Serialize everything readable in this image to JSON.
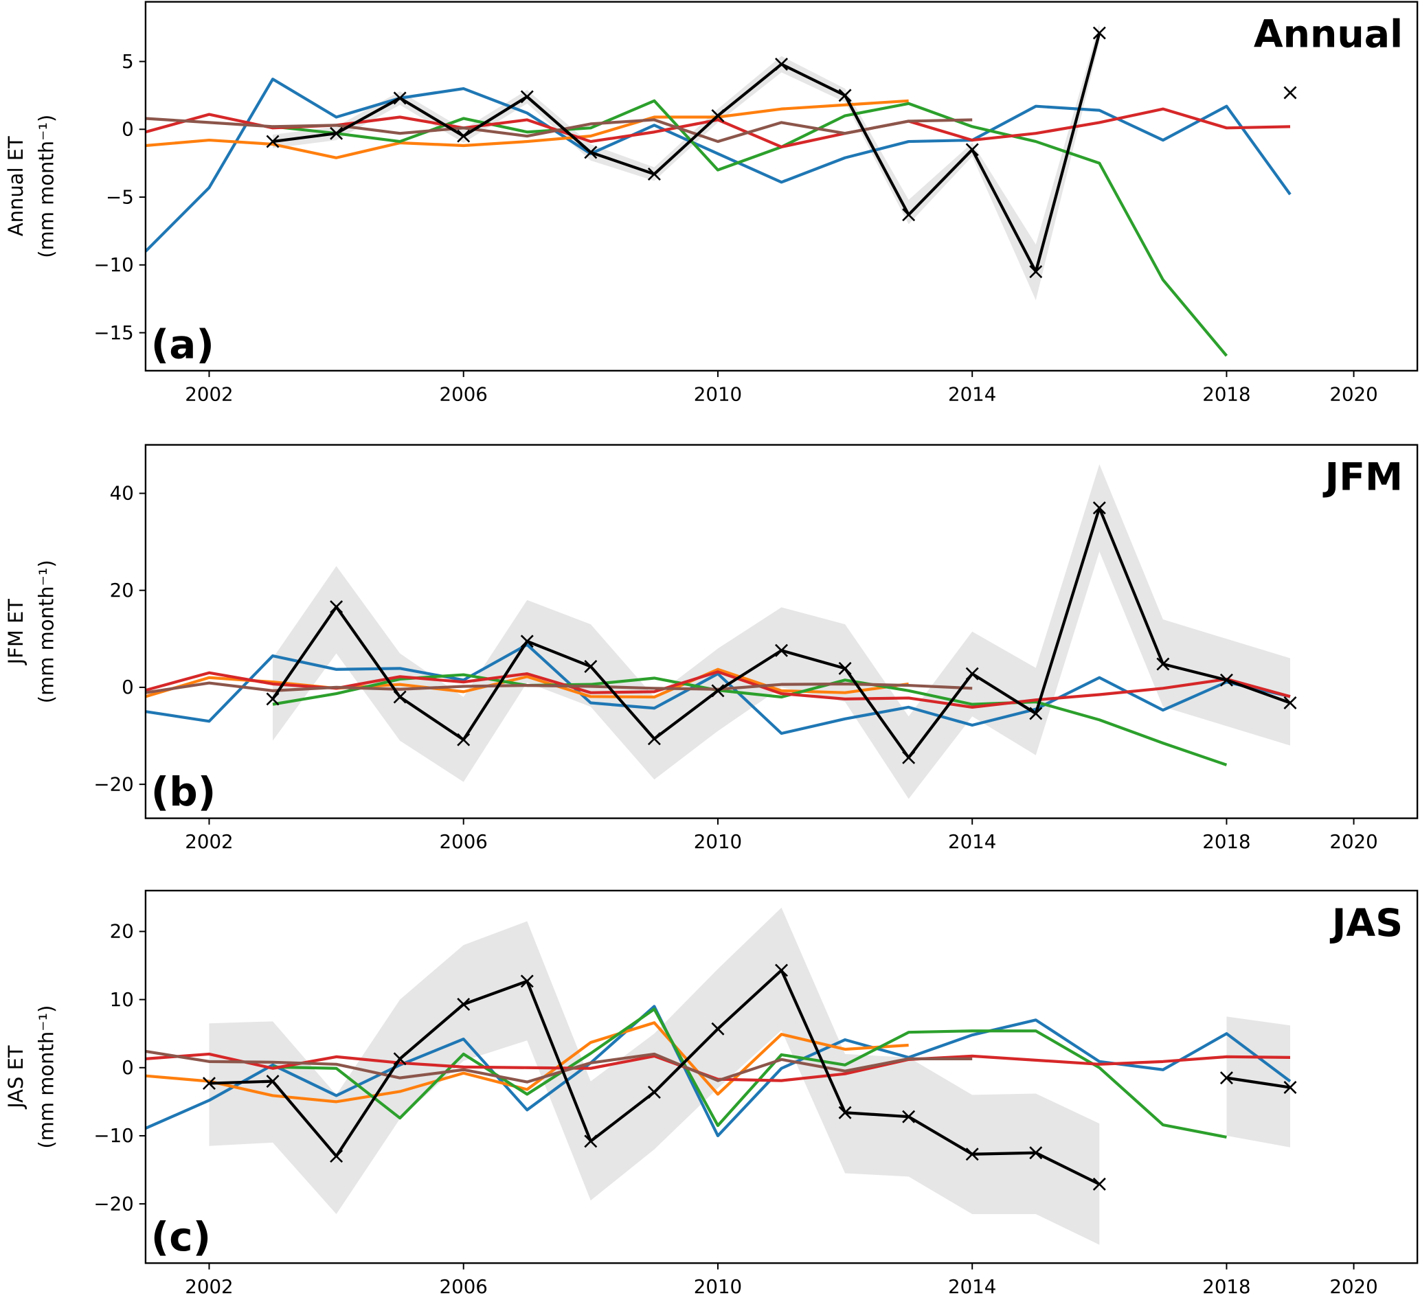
{
  "chart_data": [
    {
      "type": "line",
      "title": "Annual",
      "panel_label": "(a)",
      "ylabel_line1": "Annual ET",
      "ylabel_line2": "(mm month⁻¹)",
      "x": [
        2001,
        2002,
        2003,
        2004,
        2005,
        2006,
        2007,
        2008,
        2009,
        2010,
        2011,
        2012,
        2013,
        2014,
        2015,
        2016,
        2017,
        2018,
        2019
      ],
      "xlim": [
        2001,
        2021
      ],
      "ylim": [
        -17.8,
        9.4
      ],
      "xticks": [
        2002,
        2006,
        2010,
        2014,
        2018,
        2020
      ],
      "yticks": [
        5,
        0,
        -5,
        -10,
        -15
      ],
      "ytick_labels": [
        "5",
        "0",
        "−5",
        "−10",
        "−15"
      ],
      "grid": false,
      "band": {
        "color": "#e6e6e6",
        "lower": [
          null,
          null,
          -1.4,
          -0.8,
          1.8,
          -1.0,
          1.9,
          -2.3,
          -3.8,
          0.5,
          4.2,
          2.0,
          -7.0,
          -2.0,
          -12.6,
          6.4,
          null,
          null,
          null
        ],
        "upper": [
          null,
          null,
          -0.4,
          0.2,
          2.8,
          0.0,
          2.9,
          -1.1,
          -2.8,
          1.5,
          5.4,
          3.0,
          -5.2,
          -1.0,
          -8.5,
          7.8,
          null,
          null,
          null
        ]
      },
      "series": [
        {
          "color": "#1f77b4",
          "values": [
            -9,
            -4.3,
            3.7,
            0.9,
            2.3,
            3.0,
            1.2,
            -1.8,
            0.3,
            -1.8,
            -3.9,
            -2.1,
            -0.9,
            -0.8,
            1.7,
            1.4,
            -0.8,
            1.7,
            -4.8
          ]
        },
        {
          "color": "#ff7f0e",
          "values": [
            -1.2,
            -0.8,
            -1.1,
            -2.1,
            -1.0,
            -1.2,
            -0.9,
            -0.5,
            0.9,
            0.9,
            1.5,
            1.8,
            2.1,
            null,
            null,
            null,
            null,
            null,
            null
          ]
        },
        {
          "color": "#2ca02c",
          "values": [
            null,
            null,
            0.2,
            -0.3,
            -0.9,
            0.8,
            -0.2,
            0.1,
            2.1,
            -3.0,
            -1.3,
            1.0,
            1.9,
            0.2,
            -0.9,
            -2.5,
            -11.1,
            -16.7,
            null
          ]
        },
        {
          "color": "#d62728",
          "values": [
            -0.2,
            1.1,
            0.1,
            0.3,
            0.9,
            0.1,
            0.7,
            -0.9,
            -0.2,
            0.7,
            -1.3,
            -0.3,
            0.6,
            -0.8,
            -0.3,
            0.5,
            1.5,
            0.1,
            0.2
          ]
        },
        {
          "color": "#8c564b",
          "values": [
            0.8,
            0.5,
            0.2,
            0.3,
            -0.3,
            0.1,
            -0.5,
            0.4,
            0.7,
            -0.9,
            0.5,
            -0.3,
            0.6,
            0.7,
            null,
            null,
            null,
            null,
            null
          ]
        },
        {
          "color": "#000000",
          "marker": "x",
          "values": [
            null,
            null,
            -0.9,
            -0.3,
            2.3,
            -0.5,
            2.4,
            -1.7,
            -3.3,
            1.0,
            4.8,
            2.5,
            -6.3,
            -1.5,
            -10.5,
            7.1,
            null,
            null,
            2.7
          ]
        }
      ]
    },
    {
      "type": "line",
      "title": "JFM",
      "panel_label": "(b)",
      "ylabel_line1": "JFM ET",
      "ylabel_line2": "(mm month⁻¹)",
      "x": [
        2001,
        2002,
        2003,
        2004,
        2005,
        2006,
        2007,
        2008,
        2009,
        2010,
        2011,
        2012,
        2013,
        2014,
        2015,
        2016,
        2017,
        2018,
        2019
      ],
      "xlim": [
        2001,
        2021
      ],
      "ylim": [
        -27,
        50
      ],
      "xticks": [
        2002,
        2006,
        2010,
        2014,
        2018,
        2020
      ],
      "yticks": [
        40,
        20,
        0,
        -20
      ],
      "ytick_labels": [
        "40",
        "20",
        "0",
        "−20"
      ],
      "grid": false,
      "band": {
        "color": "#e6e6e6",
        "lower": [
          null,
          null,
          -11,
          7,
          -11,
          -19.5,
          1,
          -4,
          -19,
          -9,
          0,
          -3,
          -23,
          -6,
          -14,
          28,
          -4,
          -8,
          -12
        ],
        "upper": [
          null,
          null,
          6,
          25,
          7,
          -2,
          18,
          13,
          -2,
          8,
          16.5,
          13,
          -6,
          11.5,
          4,
          46,
          14,
          10,
          6
        ]
      },
      "series": [
        {
          "color": "#1f77b4",
          "values": [
            -5,
            -7,
            6.5,
            3.7,
            3.9,
            1.5,
            8.8,
            -3.2,
            -4.3,
            2.8,
            -9.5,
            -6.5,
            -4.1,
            -7.8,
            -4.5,
            2,
            -4.7,
            1.1,
            -1.9
          ]
        },
        {
          "color": "#ff7f0e",
          "values": [
            -1.9,
            2,
            1.1,
            -0.2,
            0.6,
            -0.9,
            2.2,
            -1.9,
            -2,
            3.7,
            -0.7,
            -1.1,
            0.7,
            null,
            null,
            null,
            null,
            null,
            null
          ]
        },
        {
          "color": "#2ca02c",
          "values": [
            null,
            null,
            -3.5,
            -1.3,
            1.7,
            2.6,
            0.4,
            0.6,
            1.9,
            -0.6,
            -2,
            1.5,
            -0.7,
            -3.5,
            -3,
            -6.7,
            -11.5,
            -16,
            null
          ]
        },
        {
          "color": "#d62728",
          "values": [
            -0.6,
            3,
            0.7,
            -0.2,
            2.2,
            1.1,
            2.8,
            -1.1,
            -0.9,
            3.2,
            -1.3,
            -2.4,
            -2.2,
            -4.1,
            -2.6,
            -1.5,
            -0.2,
            1.7,
            -1.9
          ]
        },
        {
          "color": "#8c564b",
          "values": [
            -1.1,
            0.9,
            -0.7,
            0,
            -0.4,
            0.2,
            0.4,
            0.2,
            -0.2,
            -0.4,
            0.6,
            0.7,
            0.4,
            -0.2,
            null,
            null,
            null,
            null,
            null
          ]
        },
        {
          "color": "#000000",
          "marker": "x",
          "values": [
            null,
            null,
            -2.4,
            16.6,
            -2,
            -10.8,
            9.5,
            4.3,
            -10.6,
            -0.7,
            7.6,
            3.9,
            -14.5,
            2.8,
            -5.4,
            37,
            4.8,
            1.5,
            -3.2
          ]
        }
      ]
    },
    {
      "type": "line",
      "title": "JAS",
      "panel_label": "(c)",
      "ylabel_line1": "JAS ET",
      "ylabel_line2": "(mm month⁻¹)",
      "x": [
        2001,
        2002,
        2003,
        2004,
        2005,
        2006,
        2007,
        2008,
        2009,
        2010,
        2011,
        2012,
        2013,
        2014,
        2015,
        2016,
        2017,
        2018,
        2019
      ],
      "xlim": [
        2001,
        2021
      ],
      "ylim": [
        -28.7,
        26
      ],
      "xticks": [
        2002,
        2006,
        2010,
        2014,
        2018,
        2020
      ],
      "yticks": [
        20,
        10,
        0,
        -10,
        -20
      ],
      "ytick_labels": [
        "20",
        "10",
        "0",
        "−10",
        "−20"
      ],
      "grid": false,
      "band": {
        "color": "#e6e6e6",
        "lower": [
          null,
          -11.5,
          -11,
          -21.5,
          -7.5,
          1,
          4,
          -19.5,
          -12,
          -3,
          5.5,
          -15.5,
          -16,
          -21.5,
          -21.5,
          -26,
          null,
          -10,
          -11.7
        ],
        "upper": [
          null,
          6.5,
          6.8,
          -4,
          10,
          18,
          21.5,
          -2,
          5,
          14.5,
          23.5,
          2,
          1.5,
          -4,
          -3.8,
          -8.2,
          null,
          7.5,
          6.2
        ]
      },
      "series": [
        {
          "color": "#1f77b4",
          "values": [
            -8.9,
            -4.8,
            0.4,
            -4.1,
            0.4,
            4.2,
            -6.2,
            0.7,
            9,
            -10,
            -0.1,
            4.1,
            1.5,
            4.8,
            7,
            0.9,
            -0.3,
            5,
            -2
          ]
        },
        {
          "color": "#ff7f0e",
          "values": [
            -1.2,
            -2,
            -4.1,
            -5,
            -3.5,
            -0.8,
            -3.2,
            3.7,
            6.6,
            -3.9,
            4.9,
            2.7,
            3.3,
            null,
            null,
            null,
            null,
            null,
            null
          ]
        },
        {
          "color": "#2ca02c",
          "values": [
            null,
            null,
            0.1,
            -0.1,
            -7.4,
            2,
            -3.9,
            2.1,
            8.6,
            -8.5,
            1.9,
            0.4,
            5.2,
            5.4,
            5.4,
            0,
            -8.4,
            -10.2,
            null
          ]
        },
        {
          "color": "#d62728",
          "values": [
            1.3,
            2,
            -0.1,
            1.6,
            0.7,
            0.1,
            0,
            -0.1,
            1.7,
            -1.7,
            -1.9,
            -0.9,
            1.2,
            1.7,
            1.1,
            0.5,
            0.9,
            1.6,
            1.5
          ]
        },
        {
          "color": "#8c564b",
          "values": [
            2.4,
            0.9,
            0.8,
            0.5,
            -1.5,
            -0.3,
            -2.1,
            0.7,
            2,
            -1.9,
            1.2,
            -0.5,
            1.3,
            1.3,
            null,
            null,
            null,
            null,
            null
          ]
        },
        {
          "color": "#000000",
          "marker": "x",
          "values": [
            null,
            -2.3,
            -2,
            -13,
            1.3,
            9.3,
            12.7,
            -10.8,
            -3.6,
            5.7,
            14.3,
            -6.6,
            -7.2,
            -12.7,
            -12.5,
            -17.1,
            null,
            -1.5,
            -2.9
          ]
        }
      ]
    }
  ]
}
